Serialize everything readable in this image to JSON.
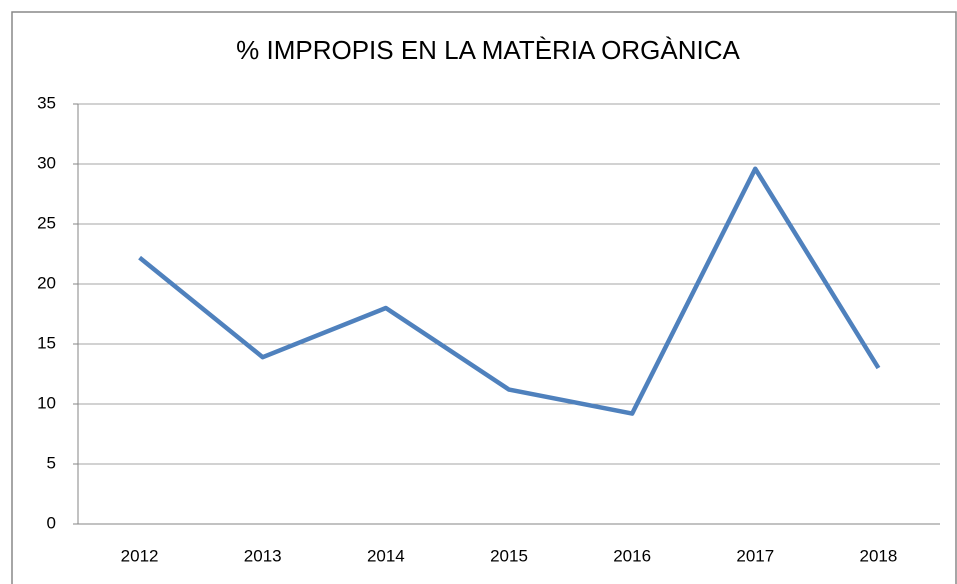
{
  "chart_data": {
    "type": "line",
    "title": "% IMPROPIS EN LA MATÈRIA ORGÀNICA",
    "categories": [
      "2012",
      "2013",
      "2014",
      "2015",
      "2016",
      "2017",
      "2018"
    ],
    "series": [
      {
        "name": null,
        "color": "#4f81bd",
        "values": [
          22.2,
          13.9,
          18.0,
          11.2,
          9.2,
          29.6,
          13.0
        ]
      }
    ],
    "ylim": [
      0,
      35
    ],
    "yticks": [
      0,
      5,
      10,
      15,
      20,
      25,
      30,
      35
    ],
    "grid": true
  }
}
